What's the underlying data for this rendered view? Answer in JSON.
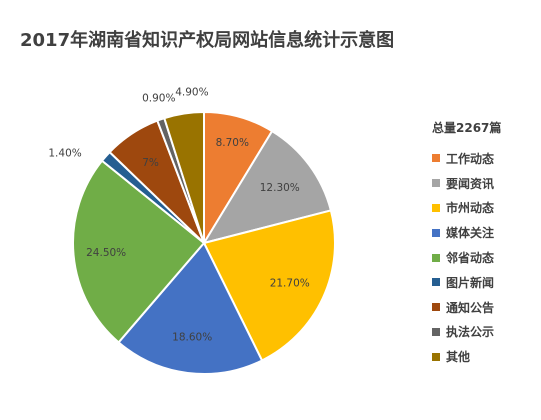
{
  "chart_data": {
    "type": "pie",
    "title": "2017年湖南省知识产权局网站信息统计示意图",
    "legend_title": "总量2267篇",
    "legend_position": "right",
    "slices": [
      {
        "label": "工作动态",
        "value": 8.7,
        "display": "8.70%",
        "color": "#ED7D31"
      },
      {
        "label": "要闻资讯",
        "value": 12.3,
        "display": "12.30%",
        "color": "#A5A5A5"
      },
      {
        "label": "市州动态",
        "value": 21.7,
        "display": "21.70%",
        "color": "#FFC000"
      },
      {
        "label": "媒体关注",
        "value": 18.6,
        "display": "18.60%",
        "color": "#4472C4"
      },
      {
        "label": "邻省动态",
        "value": 24.5,
        "display": "24.50%",
        "color": "#70AD47"
      },
      {
        "label": "图片新闻",
        "value": 1.4,
        "display": "1.40%",
        "color": "#255E91"
      },
      {
        "label": "通知公告",
        "value": 7.0,
        "display": "7%",
        "color": "#9E480E"
      },
      {
        "label": "执法公示",
        "value": 0.9,
        "display": "0.90%",
        "color": "#636363"
      },
      {
        "label": "其他",
        "value": 4.9,
        "display": "4.90%",
        "color": "#997300"
      }
    ]
  }
}
